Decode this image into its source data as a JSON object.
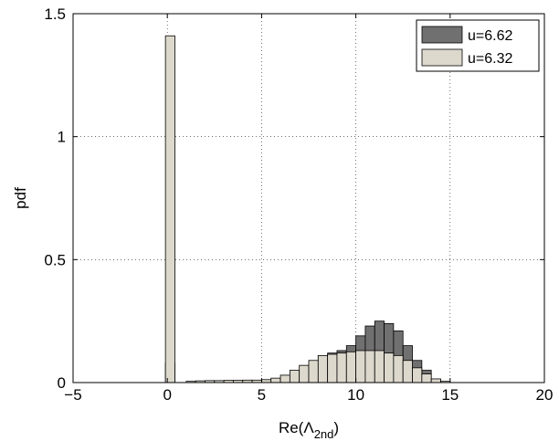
{
  "chart_data": {
    "type": "bar",
    "xlabel": "Re(Λ",
    "xlabel_sub": "2nd",
    "xlabel_close": ")",
    "ylabel": "pdf",
    "xlim": [
      -5,
      20
    ],
    "ylim": [
      0,
      1.5
    ],
    "xticks": [
      "−5",
      "0",
      "5",
      "10",
      "15",
      "20"
    ],
    "xtick_values": [
      -5,
      0,
      5,
      10,
      15,
      20
    ],
    "yticks": [
      "0",
      "0.5",
      "1",
      "1.5"
    ],
    "ytick_values": [
      0,
      0.5,
      1,
      1.5
    ],
    "grid": true,
    "legend_placement": "top-right",
    "bin_width": 0.5,
    "series": [
      {
        "name": "u=6.62",
        "color": "#707070",
        "bin_centers": [
          0.15,
          8.25,
          8.75,
          9.25,
          9.75,
          10.25,
          10.75,
          11.25,
          11.75,
          12.25,
          12.75,
          13.25,
          13.75,
          14.25
        ],
        "values": [
          0.08,
          0.11,
          0.12,
          0.13,
          0.15,
          0.19,
          0.23,
          0.25,
          0.24,
          0.21,
          0.15,
          0.09,
          0.05,
          0.01
        ]
      },
      {
        "name": "u=6.32",
        "color": "#dcd8cc",
        "bin_centers": [
          0.15,
          1.25,
          1.75,
          2.25,
          2.75,
          3.25,
          3.75,
          4.25,
          4.75,
          5.25,
          5.75,
          6.25,
          6.75,
          7.25,
          7.75,
          8.25,
          8.75,
          9.25,
          9.75,
          10.25,
          10.75,
          11.25,
          11.75,
          12.25,
          12.75,
          13.25,
          13.75,
          14.25,
          14.75
        ],
        "values": [
          1.41,
          0.005,
          0.007,
          0.008,
          0.008,
          0.009,
          0.009,
          0.01,
          0.01,
          0.012,
          0.018,
          0.03,
          0.05,
          0.07,
          0.09,
          0.11,
          0.115,
          0.12,
          0.125,
          0.13,
          0.13,
          0.13,
          0.12,
          0.11,
          0.09,
          0.06,
          0.035,
          0.015,
          0.005
        ]
      }
    ]
  }
}
